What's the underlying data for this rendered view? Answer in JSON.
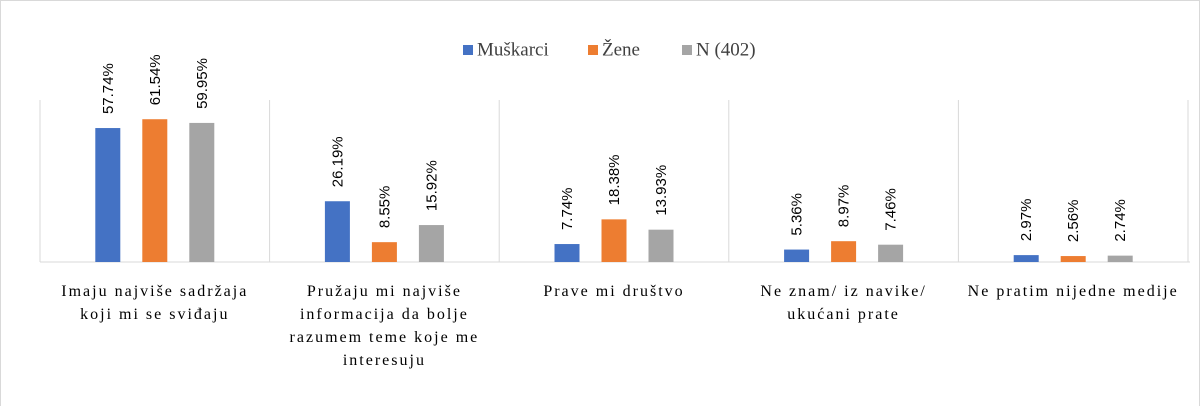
{
  "chart_data": {
    "type": "bar",
    "categories": [
      "Imaju najviše sadržaja koji mi se sviđaju",
      "Pružaju mi najviše informacija da bolje razumem teme koje me interesuju",
      "Prave mi društvo",
      "Ne znam/ iz navike/ ukućani prate",
      "Ne pratim nijedne medije"
    ],
    "series": [
      {
        "name": "Muškarci",
        "color": "#4472c4",
        "values": [
          57.74,
          26.19,
          7.74,
          5.36,
          2.97
        ],
        "value_labels": [
          "57.74%",
          "26.19%",
          "7.74%",
          "5.36%",
          "2.97%"
        ]
      },
      {
        "name": "Žene",
        "color": "#ed7d31",
        "values": [
          61.54,
          8.55,
          18.38,
          8.97,
          2.56
        ],
        "value_labels": [
          "61.54%",
          "8.55%",
          "18.38%",
          "8.97%",
          "2.56%"
        ]
      },
      {
        "name": "N (402)",
        "color": "#a5a5a5",
        "values": [
          59.95,
          15.92,
          13.93,
          7.46,
          2.74
        ],
        "value_labels": [
          "59.95%",
          "15.92%",
          "13.93%",
          "7.46%",
          "2.74%"
        ]
      }
    ],
    "legend": "top"
  }
}
